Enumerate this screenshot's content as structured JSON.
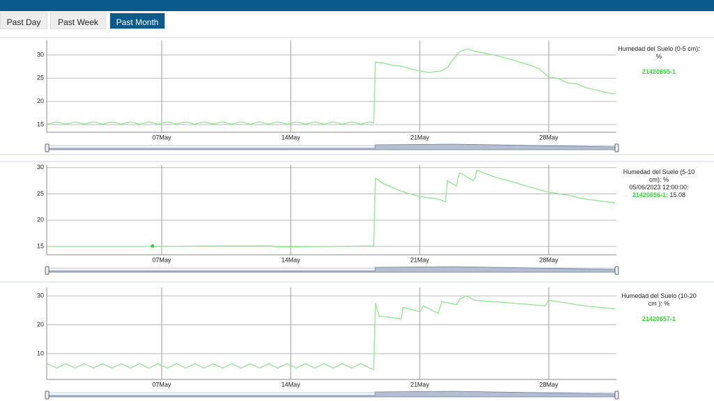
{
  "tabs": [
    "Past Day",
    "Past Week",
    "Past Month"
  ],
  "active_tab": 2,
  "chart_data": [
    {
      "type": "line",
      "legend_title": "Humedad del Suelo (0-5 cm): %",
      "xlim": [
        0.76,
        31.67
      ],
      "ylim": [
        13.35,
        33.15
      ],
      "xticks": [
        {
          "value": 7,
          "label": "07May"
        },
        {
          "value": 14,
          "label": "14May"
        },
        {
          "value": 21,
          "label": "21May"
        },
        {
          "value": 28,
          "label": "28May"
        }
      ],
      "yticks": [
        15,
        20,
        25,
        30
      ],
      "grid": true,
      "series": [
        {
          "name": "21420655-1",
          "color": "#8ee88e",
          "x": [
            0.8,
            1.3,
            1.8,
            2.3,
            2.8,
            3.3,
            3.8,
            4.3,
            4.8,
            5.3,
            5.8,
            6.3,
            6.8,
            7.3,
            7.8,
            8.3,
            8.8,
            9.3,
            9.8,
            10.3,
            10.8,
            11.3,
            11.8,
            12.3,
            12.8,
            13.3,
            13.8,
            14.3,
            14.8,
            15.3,
            15.8,
            16.3,
            16.8,
            17.3,
            17.8,
            18.3,
            18.5,
            18.6,
            19.0,
            19.5,
            20.0,
            20.5,
            21.0,
            21.5,
            21.8,
            22.2,
            22.5,
            22.8,
            23.2,
            23.6,
            24.0,
            24.5,
            25.0,
            25.5,
            26.0,
            26.5,
            27.0,
            27.5,
            28.0,
            28.5,
            29.0,
            29.5,
            30.0,
            30.5,
            31.0,
            31.6
          ],
          "values": [
            15.1,
            15.6,
            15.1,
            15.6,
            15.1,
            15.6,
            15.1,
            15.6,
            15.1,
            15.6,
            15.1,
            15.6,
            15.1,
            15.6,
            15.1,
            15.6,
            15.1,
            15.6,
            15.1,
            15.6,
            15.1,
            15.6,
            15.1,
            15.6,
            15.1,
            15.6,
            15.1,
            15.6,
            15.1,
            15.6,
            15.1,
            15.6,
            15.1,
            15.6,
            15.1,
            15.6,
            15.3,
            28.5,
            28.3,
            27.8,
            27.6,
            27.0,
            26.6,
            26.2,
            26.4,
            26.6,
            27.3,
            29.0,
            30.8,
            31.3,
            30.8,
            30.4,
            30.0,
            29.5,
            29.0,
            28.4,
            27.8,
            27.0,
            25.2,
            25.0,
            24.0,
            23.8,
            23.0,
            22.5,
            22.0,
            21.6
          ]
        }
      ]
    },
    {
      "type": "line",
      "legend_title": "Humedad del Suelo (5-10 cm): %",
      "xlim": [
        0.76,
        31.67
      ],
      "ylim": [
        13.4,
        30.5
      ],
      "xticks": [
        {
          "value": 7,
          "label": "07May"
        },
        {
          "value": 14,
          "label": "14May"
        },
        {
          "value": 21,
          "label": "21May"
        },
        {
          "value": 28,
          "label": "28May"
        }
      ],
      "yticks": [
        15,
        20,
        25,
        30
      ],
      "grid": true,
      "tooltip": {
        "date": "05/06/2023 12:00:00:",
        "series_label": "21420656-1:",
        "x": 6.5,
        "value": 15.08
      },
      "series": [
        {
          "name": "21420656-1",
          "color": "#8ee88e",
          "x": [
            0.8,
            6.5,
            10,
            13,
            13.2,
            18.5,
            18.6,
            19.0,
            20.0,
            21.0,
            22.0,
            22.4,
            22.5,
            23.0,
            23.1,
            23.2,
            23.9,
            24.0,
            24.1,
            25.0,
            26.0,
            27.0,
            28.0,
            29.0,
            30.0,
            31.6
          ],
          "values": [
            15.0,
            15.0,
            15.1,
            15.1,
            14.9,
            15.1,
            28.0,
            27.0,
            25.5,
            24.5,
            24.0,
            23.5,
            27.5,
            26.5,
            28.5,
            29.0,
            27.5,
            28.0,
            29.5,
            28.3,
            27.3,
            26.3,
            25.3,
            24.8,
            24.0,
            23.3
          ]
        }
      ]
    },
    {
      "type": "line",
      "legend_title": "Humedad del Suelo (10-20 cm ): %",
      "xlim": [
        0.76,
        31.67
      ],
      "ylim": [
        1.08,
        32.9
      ],
      "xticks": [
        {
          "value": 7,
          "label": "07May"
        },
        {
          "value": 14,
          "label": "14May"
        },
        {
          "value": 21,
          "label": "21May"
        },
        {
          "value": 28,
          "label": "28May"
        }
      ],
      "yticks": [
        10,
        20,
        30
      ],
      "grid": true,
      "series": [
        {
          "name": "21420657-1",
          "color": "#8ee88e",
          "x": [
            0.8,
            1.3,
            1.8,
            2.3,
            2.8,
            3.3,
            3.8,
            4.3,
            4.8,
            5.3,
            5.8,
            6.3,
            6.8,
            7.3,
            7.8,
            8.3,
            8.8,
            9.3,
            9.8,
            10.3,
            10.8,
            11.3,
            11.8,
            12.3,
            12.8,
            13.3,
            13.8,
            14.3,
            14.8,
            15.3,
            15.8,
            16.3,
            16.8,
            17.3,
            17.8,
            18.3,
            18.5,
            18.6,
            18.8,
            19.5,
            20.0,
            20.1,
            21.0,
            21.2,
            22.0,
            22.2,
            23.0,
            23.2,
            23.5,
            24.0,
            25.0,
            26.0,
            27.0,
            27.8,
            28.0,
            29.0,
            30.0,
            31.6
          ],
          "values": [
            6.5,
            5.0,
            6.5,
            5.0,
            6.5,
            5.0,
            6.5,
            5.0,
            6.5,
            5.0,
            6.5,
            5.0,
            6.5,
            5.0,
            6.5,
            5.0,
            6.5,
            5.0,
            6.5,
            5.0,
            6.5,
            5.0,
            6.5,
            5.0,
            6.5,
            5.0,
            6.5,
            5.0,
            6.5,
            5.0,
            6.5,
            5.0,
            6.5,
            5.0,
            6.5,
            5.0,
            4.5,
            27.5,
            23.0,
            22.5,
            22.0,
            26.0,
            24.5,
            26.5,
            24.0,
            28.0,
            27.0,
            29.0,
            30.0,
            28.5,
            28.0,
            27.5,
            27.0,
            26.5,
            28.5,
            27.5,
            26.5,
            25.5
          ]
        }
      ]
    }
  ]
}
